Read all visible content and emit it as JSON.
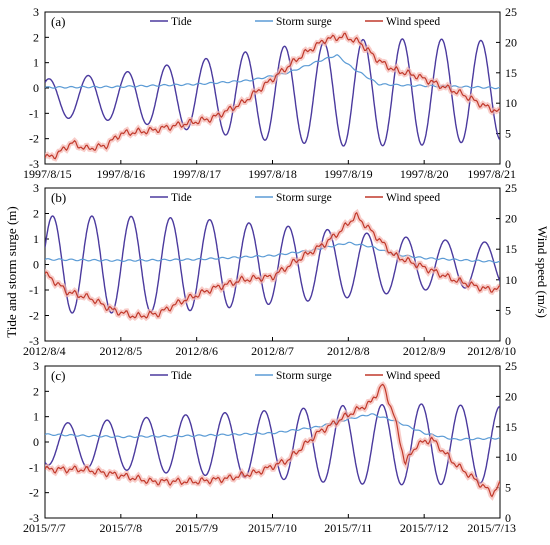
{
  "figure": {
    "left_axis_label": "Tide and storm surge (m)",
    "right_axis_label": "Wind speed (m/s)",
    "legend": [
      "Tide",
      "Storm surge",
      "Wind speed"
    ],
    "colors": {
      "tide": "#4b3a9e",
      "storm_surge": "#5b9bd5",
      "wind_speed": "#c0392b",
      "wind_glow": "#f5b7b1"
    }
  },
  "chart_data": [
    {
      "type": "line",
      "panel_label": "(a)",
      "x_ticks": [
        "1997/8/15",
        "1997/8/16",
        "1997/8/17",
        "1997/8/18",
        "1997/8/19",
        "1997/8/20",
        "1997/8/21"
      ],
      "ylim_left": [
        -3,
        3
      ],
      "yticks_left": [
        -3,
        -2,
        -1,
        0,
        1,
        2,
        3
      ],
      "ylim_right": [
        0,
        25
      ],
      "yticks_right": [
        0,
        5,
        10,
        15,
        20,
        25
      ],
      "legend_position": "top",
      "series": [
        {
          "name": "Tide",
          "axis": "left",
          "amp": [
            [
              0,
              0.75
            ],
            [
              1,
              0.95
            ],
            [
              2,
              1.4
            ],
            [
              3,
              1.85
            ],
            [
              4,
              2.1
            ],
            [
              5,
              2.1
            ],
            [
              6,
              1.95
            ]
          ],
          "mid": [
            [
              0,
              -0.4
            ],
            [
              6,
              -0.1
            ]
          ],
          "period": 0.518,
          "phase": 0.05
        },
        {
          "name": "Storm surge",
          "axis": "left",
          "points": [
            [
              0,
              0.02
            ],
            [
              1,
              0.05
            ],
            [
              2,
              0.15
            ],
            [
              2.7,
              0.3
            ],
            [
              3.2,
              0.6
            ],
            [
              3.6,
              1.05
            ],
            [
              3.85,
              1.3
            ],
            [
              4.05,
              0.8
            ],
            [
              4.4,
              0.15
            ],
            [
              4.8,
              0.1
            ],
            [
              5.5,
              0.05
            ],
            [
              6,
              0
            ]
          ]
        },
        {
          "name": "Wind speed",
          "axis": "right",
          "points": [
            [
              0,
              1
            ],
            [
              0.15,
              1.5
            ],
            [
              0.35,
              3.5
            ],
            [
              0.55,
              2.5
            ],
            [
              0.8,
              3
            ],
            [
              1.0,
              5
            ],
            [
              1.4,
              5.5
            ],
            [
              1.8,
              6.5
            ],
            [
              2.2,
              7.5
            ],
            [
              2.6,
              10
            ],
            [
              3.0,
              14
            ],
            [
              3.4,
              18
            ],
            [
              3.7,
              20.5
            ],
            [
              3.95,
              21
            ],
            [
              4.15,
              20
            ],
            [
              4.4,
              17
            ],
            [
              4.6,
              15.5
            ],
            [
              4.9,
              14.5
            ],
            [
              5.2,
              13
            ],
            [
              5.5,
              11.5
            ],
            [
              5.8,
              9.5
            ],
            [
              6,
              8.5
            ]
          ]
        }
      ]
    },
    {
      "type": "line",
      "panel_label": "(b)",
      "x_ticks": [
        "2012/8/4",
        "2012/8/5",
        "2012/8/6",
        "2012/8/7",
        "2012/8/8",
        "2012/8/9",
        "2012/8/10"
      ],
      "ylim_left": [
        -3,
        3
      ],
      "yticks_left": [
        -3,
        -2,
        -1,
        0,
        1,
        2,
        3
      ],
      "ylim_right": [
        0,
        25
      ],
      "yticks_right": [
        0,
        5,
        10,
        15,
        20,
        25
      ],
      "legend_position": "top",
      "series": [
        {
          "name": "Tide",
          "axis": "left",
          "amp": [
            [
              0,
              1.9
            ],
            [
              1,
              1.9
            ],
            [
              2,
              1.8
            ],
            [
              3,
              1.55
            ],
            [
              4,
              1.3
            ],
            [
              5,
              1.0
            ],
            [
              6,
              0.85
            ]
          ],
          "mid": [
            [
              0,
              0
            ],
            [
              6,
              0
            ]
          ],
          "period": 0.518,
          "phase": 0.1
        },
        {
          "name": "Storm surge",
          "axis": "left",
          "points": [
            [
              0,
              0.2
            ],
            [
              1,
              0.15
            ],
            [
              2,
              0.2
            ],
            [
              3,
              0.35
            ],
            [
              3.5,
              0.55
            ],
            [
              4.0,
              0.85
            ],
            [
              4.3,
              0.7
            ],
            [
              4.6,
              0.4
            ],
            [
              5,
              0.25
            ],
            [
              6,
              0.1
            ]
          ]
        },
        {
          "name": "Wind speed",
          "axis": "right",
          "points": [
            [
              0,
              11
            ],
            [
              0.3,
              8
            ],
            [
              0.6,
              7
            ],
            [
              0.9,
              5
            ],
            [
              1.2,
              4
            ],
            [
              1.5,
              4.5
            ],
            [
              1.8,
              6.5
            ],
            [
              2.2,
              8.5
            ],
            [
              2.6,
              10
            ],
            [
              3.0,
              10.5
            ],
            [
              3.3,
              13
            ],
            [
              3.7,
              16
            ],
            [
              3.9,
              18
            ],
            [
              4.1,
              20.5
            ],
            [
              4.3,
              18
            ],
            [
              4.6,
              14
            ],
            [
              5.0,
              12
            ],
            [
              5.4,
              10
            ],
            [
              5.8,
              8.5
            ],
            [
              6,
              8.5
            ]
          ]
        }
      ]
    },
    {
      "type": "line",
      "panel_label": "(c)",
      "x_ticks": [
        "2015/7/7",
        "2015/7/8",
        "2015/7/9",
        "2015/7/10",
        "2015/7/11",
        "2015/7/12",
        "2015/7/13"
      ],
      "ylim_left": [
        -3,
        3
      ],
      "yticks_left": [
        -3,
        -2,
        -1,
        0,
        1,
        2,
        3
      ],
      "ylim_right": [
        0,
        25
      ],
      "yticks_right": [
        0,
        5,
        10,
        15,
        20,
        25
      ],
      "legend_position": "top",
      "series": [
        {
          "name": "Tide",
          "axis": "left",
          "amp": [
            [
              0,
              0.8
            ],
            [
              1,
              1.0
            ],
            [
              2,
              1.2
            ],
            [
              3,
              1.35
            ],
            [
              4,
              1.55
            ],
            [
              5,
              1.6
            ],
            [
              6,
              1.5
            ]
          ],
          "mid": [
            [
              0,
              -0.1
            ],
            [
              6,
              -0.1
            ]
          ],
          "period": 0.518,
          "phase": 0.3
        },
        {
          "name": "Storm surge",
          "axis": "left",
          "points": [
            [
              0,
              0.3
            ],
            [
              1,
              0.2
            ],
            [
              2,
              0.25
            ],
            [
              3,
              0.35
            ],
            [
              3.6,
              0.6
            ],
            [
              4.0,
              0.9
            ],
            [
              4.3,
              1.1
            ],
            [
              4.6,
              0.85
            ],
            [
              5,
              0.35
            ],
            [
              5.4,
              0.1
            ],
            [
              6,
              0.15
            ]
          ]
        },
        {
          "name": "Wind speed",
          "axis": "right",
          "points": [
            [
              0,
              8
            ],
            [
              0.5,
              8
            ],
            [
              1.0,
              7
            ],
            [
              1.4,
              6
            ],
            [
              2.0,
              6
            ],
            [
              2.4,
              6.5
            ],
            [
              2.8,
              7.5
            ],
            [
              3.2,
              9.5
            ],
            [
              3.6,
              14
            ],
            [
              4.0,
              17
            ],
            [
              4.3,
              19
            ],
            [
              4.45,
              22
            ],
            [
              4.6,
              17
            ],
            [
              4.75,
              9
            ],
            [
              4.9,
              12
            ],
            [
              5.1,
              13
            ],
            [
              5.4,
              9
            ],
            [
              5.7,
              6
            ],
            [
              5.9,
              4
            ],
            [
              6,
              5.5
            ]
          ]
        }
      ]
    }
  ]
}
